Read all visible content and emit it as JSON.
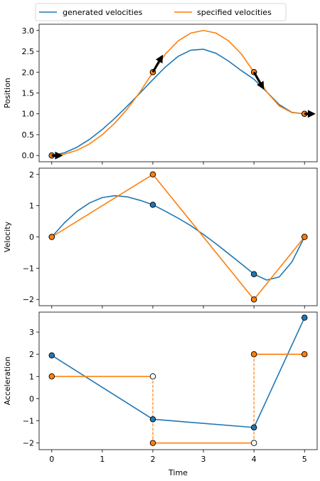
{
  "colors": {
    "generated": "#1f77b4",
    "specified": "#ff7f0e",
    "arrow": "#000000"
  },
  "legend": {
    "placement": "top",
    "items": [
      {
        "key": "generated",
        "label": "generated velocities"
      },
      {
        "key": "specified",
        "label": "specified velocities"
      }
    ]
  },
  "chart_data": [
    {
      "type": "line",
      "ylabel": "Position",
      "xlim": [
        -0.25,
        5.25
      ],
      "ylim": [
        -0.15,
        3.15
      ],
      "xticks": [
        0,
        1,
        2,
        3,
        4,
        5
      ],
      "show_xticklabels": false,
      "yticks": [
        0.0,
        0.5,
        1.0,
        1.5,
        2.0,
        2.5,
        3.0
      ],
      "yticklabels": [
        "0.0",
        "0.5",
        "1.0",
        "1.5",
        "2.0",
        "2.5",
        "3.0"
      ],
      "series": [
        {
          "key": "generated",
          "curve_x": [
            0,
            0.25,
            0.5,
            0.75,
            1,
            1.25,
            1.5,
            1.75,
            2,
            2.25,
            2.5,
            2.75,
            3,
            3.25,
            3.5,
            3.75,
            4,
            4.25,
            4.5,
            4.75,
            5
          ],
          "curve_y": [
            0,
            0.066,
            0.199,
            0.389,
            0.625,
            0.896,
            1.193,
            1.504,
            1.82,
            2.127,
            2.379,
            2.527,
            2.55,
            2.452,
            2.263,
            2.037,
            1.83,
            1.528,
            1.221,
            1.036,
            1.0
          ],
          "points_x": [
            0,
            2,
            4,
            5
          ],
          "points_y": [
            0,
            2,
            2,
            1
          ]
        },
        {
          "key": "specified",
          "curve_x": [
            0,
            0.25,
            0.5,
            0.75,
            1,
            1.25,
            1.5,
            1.75,
            2,
            2.25,
            2.5,
            2.75,
            3,
            3.25,
            3.5,
            3.75,
            4,
            4.25,
            4.5,
            4.75,
            5
          ],
          "curve_y": [
            0,
            0.031,
            0.125,
            0.281,
            0.5,
            0.781,
            1.125,
            1.531,
            2.0,
            2.438,
            2.75,
            2.938,
            3.0,
            2.938,
            2.75,
            2.438,
            2.0,
            1.531,
            1.188,
            1.031,
            1.0
          ],
          "points_x": [
            0,
            2,
            4,
            5
          ],
          "points_y": [
            0,
            2,
            2,
            1
          ]
        }
      ],
      "arrows": [
        {
          "x": 0,
          "y": 0,
          "dx": 0.22,
          "dy": 0.0
        },
        {
          "x": 2,
          "y": 2,
          "dx": 0.2,
          "dy": 0.42
        },
        {
          "x": 4,
          "y": 2,
          "dx": 0.2,
          "dy": -0.42
        },
        {
          "x": 5,
          "y": 1,
          "dx": 0.22,
          "dy": 0.0
        }
      ]
    },
    {
      "type": "line",
      "ylabel": "Velocity",
      "xlim": [
        -0.25,
        5.25
      ],
      "ylim": [
        -2.2,
        2.2
      ],
      "xticks": [
        0,
        1,
        2,
        3,
        4,
        5
      ],
      "show_xticklabels": false,
      "yticks": [
        -2,
        -1,
        0,
        1,
        2
      ],
      "yticklabels": [
        "−2",
        "−1",
        "0",
        "1",
        "2"
      ],
      "series": [
        {
          "key": "generated",
          "curve_x": [
            0,
            0.25,
            0.5,
            0.75,
            1,
            1.25,
            1.5,
            1.75,
            2,
            2.25,
            2.5,
            2.75,
            3,
            3.25,
            3.5,
            3.75,
            4,
            4.25,
            4.5,
            4.75,
            5
          ],
          "curve_y": [
            0,
            0.45,
            0.82,
            1.09,
            1.26,
            1.32,
            1.28,
            1.17,
            1.03,
            0.82,
            0.6,
            0.36,
            0.08,
            -0.22,
            -0.54,
            -0.86,
            -1.19,
            -1.38,
            -1.28,
            -0.8,
            0
          ],
          "points_x": [
            0,
            2,
            4,
            5
          ],
          "points_y": [
            0,
            1.03,
            -1.19,
            0
          ]
        },
        {
          "key": "specified",
          "curve_x": [
            0,
            2,
            4,
            5
          ],
          "curve_y": [
            0,
            2,
            -2,
            0
          ],
          "points_x": [
            0,
            2,
            4,
            5
          ],
          "points_y": [
            0,
            2,
            -2,
            0
          ]
        }
      ],
      "arrows": []
    },
    {
      "type": "line",
      "ylabel": "Acceleration",
      "xlabel": "Time",
      "xlim": [
        -0.25,
        5.25
      ],
      "ylim": [
        -2.3,
        3.9
      ],
      "xticks": [
        0,
        1,
        2,
        3,
        4,
        5
      ],
      "show_xticklabels": true,
      "xticklabels": [
        "0",
        "1",
        "2",
        "3",
        "4",
        "5"
      ],
      "yticks": [
        -2,
        -1,
        0,
        1,
        2,
        3
      ],
      "yticklabels": [
        "−2",
        "−1",
        "0",
        "1",
        "2",
        "3"
      ],
      "series": [
        {
          "key": "generated",
          "curve_x": [
            0,
            2,
            4,
            5
          ],
          "curve_y": [
            1.95,
            -0.93,
            -1.3,
            3.65
          ],
          "points_x": [
            0,
            2,
            4,
            5
          ],
          "points_y": [
            1.95,
            -0.93,
            -1.3,
            3.65
          ]
        },
        {
          "key": "specified",
          "segments": [
            {
              "x": [
                0,
                2
              ],
              "y": [
                1,
                1
              ]
            },
            {
              "x": [
                2,
                4
              ],
              "y": [
                -2,
                -2
              ]
            },
            {
              "x": [
                4,
                5
              ],
              "y": [
                2,
                2
              ]
            }
          ],
          "jumps": [
            {
              "x": 2,
              "y": [
                1,
                -2
              ]
            },
            {
              "x": 4,
              "y": [
                -2,
                2
              ]
            }
          ],
          "points_x": [
            0,
            2,
            4,
            5
          ],
          "points_y": [
            1,
            -2,
            2,
            2
          ],
          "open_points_x": [
            2,
            4
          ],
          "open_points_y": [
            1,
            -2
          ]
        }
      ],
      "arrows": []
    }
  ]
}
